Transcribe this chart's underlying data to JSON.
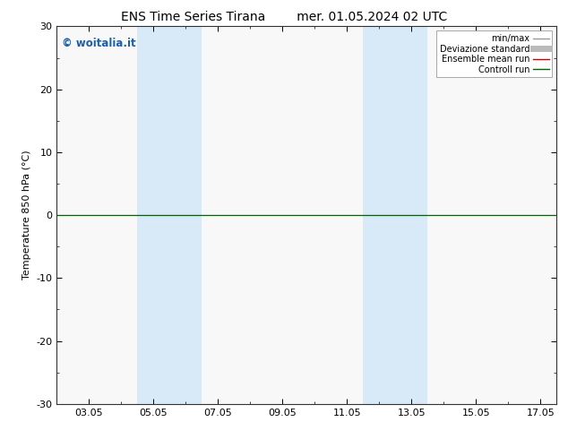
{
  "title_left": "ENS Time Series Tirana",
  "title_right": "mer. 01.05.2024 02 UTC",
  "ylabel": "Temperature 850 hPa (°C)",
  "ylim": [
    -30,
    30
  ],
  "yticks": [
    -30,
    -20,
    -10,
    0,
    10,
    20,
    30
  ],
  "xlim_min": 2.0,
  "xlim_max": 17.5,
  "xtick_labels": [
    "03.05",
    "05.05",
    "07.05",
    "09.05",
    "11.05",
    "13.05",
    "15.05",
    "17.05"
  ],
  "xtick_positions": [
    3,
    5,
    7,
    9,
    11,
    13,
    15,
    17
  ],
  "blue_bands": [
    {
      "start": 4.5,
      "end": 6.5
    },
    {
      "start": 11.5,
      "end": 13.5
    }
  ],
  "hline_y": 0,
  "hline_color": "#006400",
  "band_color": "#d8eaf8",
  "legend_entries": [
    {
      "label": "min/max",
      "color": "#999999",
      "lw": 1.0
    },
    {
      "label": "Deviazione standard",
      "color": "#bbbbbb",
      "lw": 5
    },
    {
      "label": "Ensemble mean run",
      "color": "#cc0000",
      "lw": 1.0
    },
    {
      "label": "Controll run",
      "color": "#006400",
      "lw": 1.0
    }
  ],
  "watermark": "© woitalia.it",
  "watermark_color": "#1a5ead",
  "background_color": "#ffffff",
  "axes_bg_color": "#f8f8f8",
  "title_fontsize": 10,
  "axis_label_fontsize": 8,
  "tick_fontsize": 8,
  "legend_fontsize": 7
}
